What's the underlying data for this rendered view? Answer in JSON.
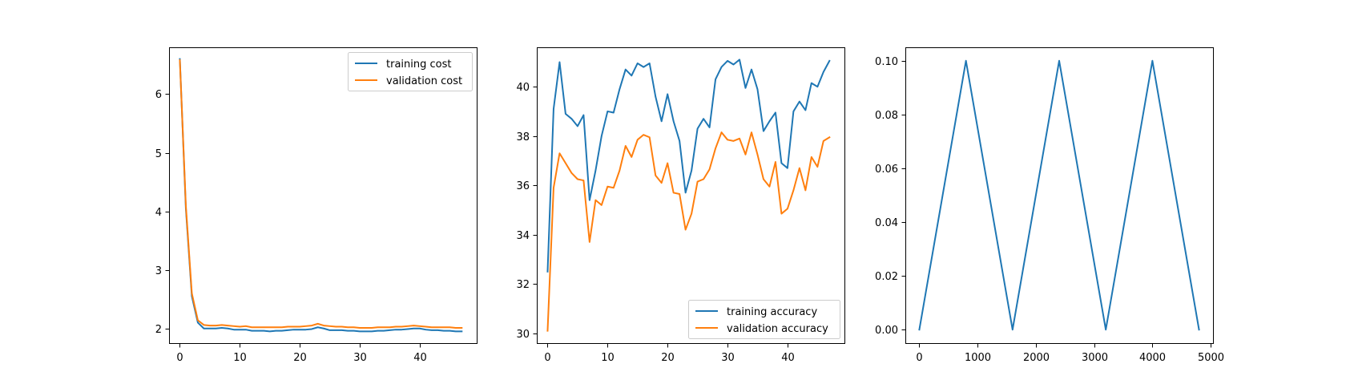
{
  "colors": {
    "series1": "#1f77b4",
    "series2": "#ff7f0e"
  },
  "chart_data": [
    {
      "type": "line",
      "title": "",
      "xlabel": "",
      "ylabel": "",
      "xlim": [
        -1.8,
        49.5
      ],
      "ylim": [
        1.75,
        6.8
      ],
      "xticks": [
        0,
        10,
        20,
        30,
        40
      ],
      "yticks": [
        2,
        3,
        4,
        5,
        6
      ],
      "grid": false,
      "legend": "upper-right",
      "x": [
        0,
        1,
        2,
        3,
        4,
        5,
        6,
        7,
        8,
        9,
        10,
        11,
        12,
        13,
        14,
        15,
        16,
        17,
        18,
        19,
        20,
        21,
        22,
        23,
        24,
        25,
        26,
        27,
        28,
        29,
        30,
        31,
        32,
        33,
        34,
        35,
        36,
        37,
        38,
        39,
        40,
        41,
        42,
        43,
        44,
        45,
        46,
        47
      ],
      "series": [
        {
          "name": "training cost",
          "color": "#1f77b4",
          "values": [
            6.6,
            4.05,
            2.55,
            2.1,
            2.0,
            2.0,
            2.0,
            2.01,
            2.0,
            1.98,
            1.98,
            1.98,
            1.96,
            1.96,
            1.96,
            1.95,
            1.96,
            1.96,
            1.97,
            1.98,
            1.98,
            1.98,
            1.99,
            2.02,
            2.0,
            1.97,
            1.97,
            1.97,
            1.96,
            1.96,
            1.95,
            1.95,
            1.95,
            1.96,
            1.96,
            1.97,
            1.98,
            1.98,
            1.99,
            2.0,
            2.0,
            1.98,
            1.97,
            1.97,
            1.96,
            1.96,
            1.95,
            1.95
          ]
        },
        {
          "name": "validation cost",
          "color": "#ff7f0e",
          "values": [
            6.58,
            4.1,
            2.6,
            2.14,
            2.06,
            2.05,
            2.05,
            2.06,
            2.05,
            2.04,
            2.03,
            2.04,
            2.02,
            2.02,
            2.02,
            2.02,
            2.02,
            2.02,
            2.03,
            2.03,
            2.03,
            2.04,
            2.05,
            2.08,
            2.05,
            2.04,
            2.03,
            2.03,
            2.02,
            2.02,
            2.01,
            2.01,
            2.01,
            2.02,
            2.02,
            2.02,
            2.03,
            2.03,
            2.04,
            2.05,
            2.04,
            2.03,
            2.02,
            2.02,
            2.02,
            2.02,
            2.01,
            2.01
          ]
        }
      ]
    },
    {
      "type": "line",
      "title": "",
      "xlabel": "",
      "ylabel": "",
      "xlim": [
        -1.8,
        49.5
      ],
      "ylim": [
        29.6,
        41.6
      ],
      "xticks": [
        0,
        10,
        20,
        30,
        40
      ],
      "yticks": [
        30,
        32,
        34,
        36,
        38,
        40
      ],
      "grid": false,
      "legend": "lower-right",
      "x": [
        0,
        1,
        2,
        3,
        4,
        5,
        6,
        7,
        8,
        9,
        10,
        11,
        12,
        13,
        14,
        15,
        16,
        17,
        18,
        19,
        20,
        21,
        22,
        23,
        24,
        25,
        26,
        27,
        28,
        29,
        30,
        31,
        32,
        33,
        34,
        35,
        36,
        37,
        38,
        39,
        40,
        41,
        42,
        43,
        44,
        45,
        46,
        47
      ],
      "series": [
        {
          "name": "training accuracy",
          "color": "#1f77b4",
          "values": [
            32.5,
            39.1,
            41.0,
            38.9,
            38.7,
            38.4,
            38.85,
            35.4,
            36.6,
            38.0,
            39.0,
            38.95,
            39.9,
            40.7,
            40.45,
            40.95,
            40.8,
            40.95,
            39.6,
            38.6,
            39.7,
            38.6,
            37.8,
            35.7,
            36.6,
            38.3,
            38.7,
            38.35,
            40.3,
            40.8,
            41.05,
            40.9,
            41.1,
            39.95,
            40.7,
            39.9,
            38.2,
            38.6,
            38.95,
            36.9,
            36.7,
            39.0,
            39.4,
            39.05,
            40.15,
            40.0,
            40.6,
            41.05
          ]
        },
        {
          "name": "validation accuracy",
          "color": "#ff7f0e",
          "values": [
            30.1,
            35.9,
            37.3,
            36.9,
            36.5,
            36.25,
            36.2,
            33.7,
            35.4,
            35.2,
            35.95,
            35.9,
            36.6,
            37.6,
            37.15,
            37.85,
            38.05,
            37.95,
            36.4,
            36.1,
            36.9,
            35.7,
            35.65,
            34.2,
            34.85,
            36.15,
            36.25,
            36.65,
            37.5,
            38.15,
            37.85,
            37.8,
            37.9,
            37.25,
            38.15,
            37.25,
            36.25,
            35.95,
            36.95,
            34.85,
            35.05,
            35.8,
            36.7,
            35.8,
            37.15,
            36.75,
            37.8,
            37.95
          ]
        }
      ]
    },
    {
      "type": "line",
      "title": "",
      "xlabel": "",
      "ylabel": "",
      "xlim": [
        -240,
        5040
      ],
      "ylim": [
        -0.005,
        0.105
      ],
      "xticks": [
        0,
        1000,
        2000,
        3000,
        4000,
        5000
      ],
      "yticks": [
        0.0,
        0.02,
        0.04,
        0.06,
        0.08,
        0.1
      ],
      "ytick_labels": [
        "0.00",
        "0.02",
        "0.04",
        "0.06",
        "0.08",
        "0.10"
      ],
      "grid": false,
      "legend": "none",
      "x": [
        0,
        800,
        1600,
        2400,
        3200,
        4000,
        4800
      ],
      "series": [
        {
          "color": "#1f77b4",
          "values": [
            0.0,
            0.1,
            0.0,
            0.1,
            0.0,
            0.1,
            0.0
          ]
        }
      ]
    }
  ]
}
